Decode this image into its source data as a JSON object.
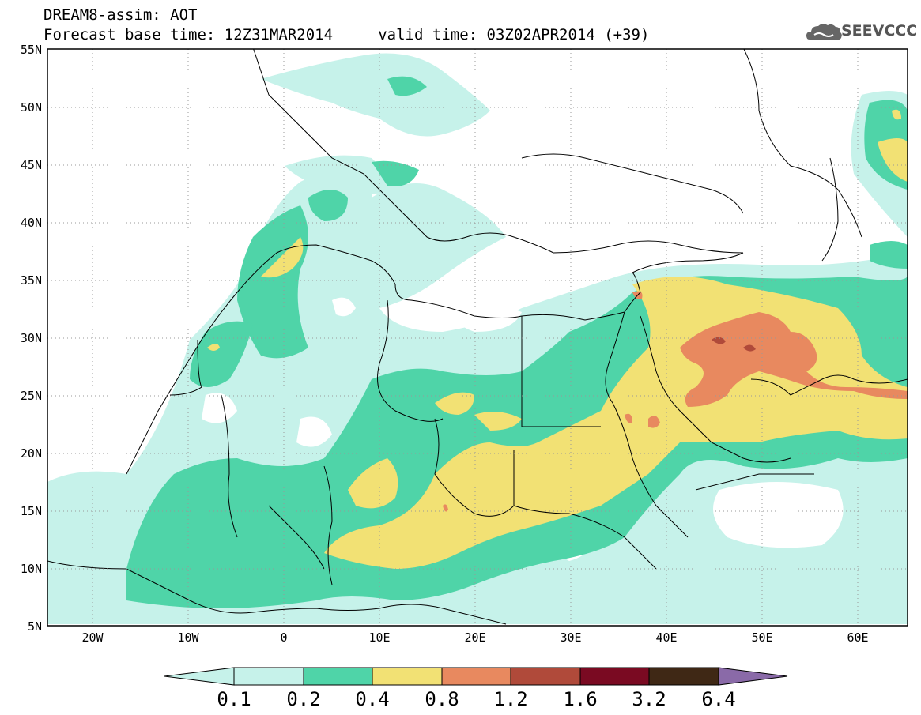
{
  "header": {
    "title_line1": "DREAM8-assim: AOT",
    "title_line2": "Forecast base time: 12Z31MAR2014     valid time: 03Z02APR2014 (+39)"
  },
  "logo": {
    "text": "SEEVCCC",
    "icon": "cloud-icon"
  },
  "map": {
    "lat_ticks": [
      "55N",
      "50N",
      "45N",
      "40N",
      "35N",
      "30N",
      "25N",
      "20N",
      "15N",
      "10N",
      "5N"
    ],
    "lon_ticks": [
      "20W",
      "10W",
      "0",
      "10E",
      "20E",
      "30E",
      "40E",
      "50E",
      "60E"
    ],
    "lon_range": [
      -25,
      65
    ],
    "lat_range": [
      5,
      55
    ]
  },
  "legend": {
    "labels": [
      "0.1",
      "0.2",
      "0.4",
      "0.8",
      "1.2",
      "1.6",
      "3.2",
      "6.4"
    ],
    "colors": {
      "c01": "#c6f2ea",
      "c02": "#4fd4a8",
      "c04": "#f2e174",
      "c08": "#e8895f",
      "c12": "#b04a3a",
      "c16": "#7a0a22",
      "c32": "#3f2815",
      "c64": "#8a6aa8"
    }
  }
}
